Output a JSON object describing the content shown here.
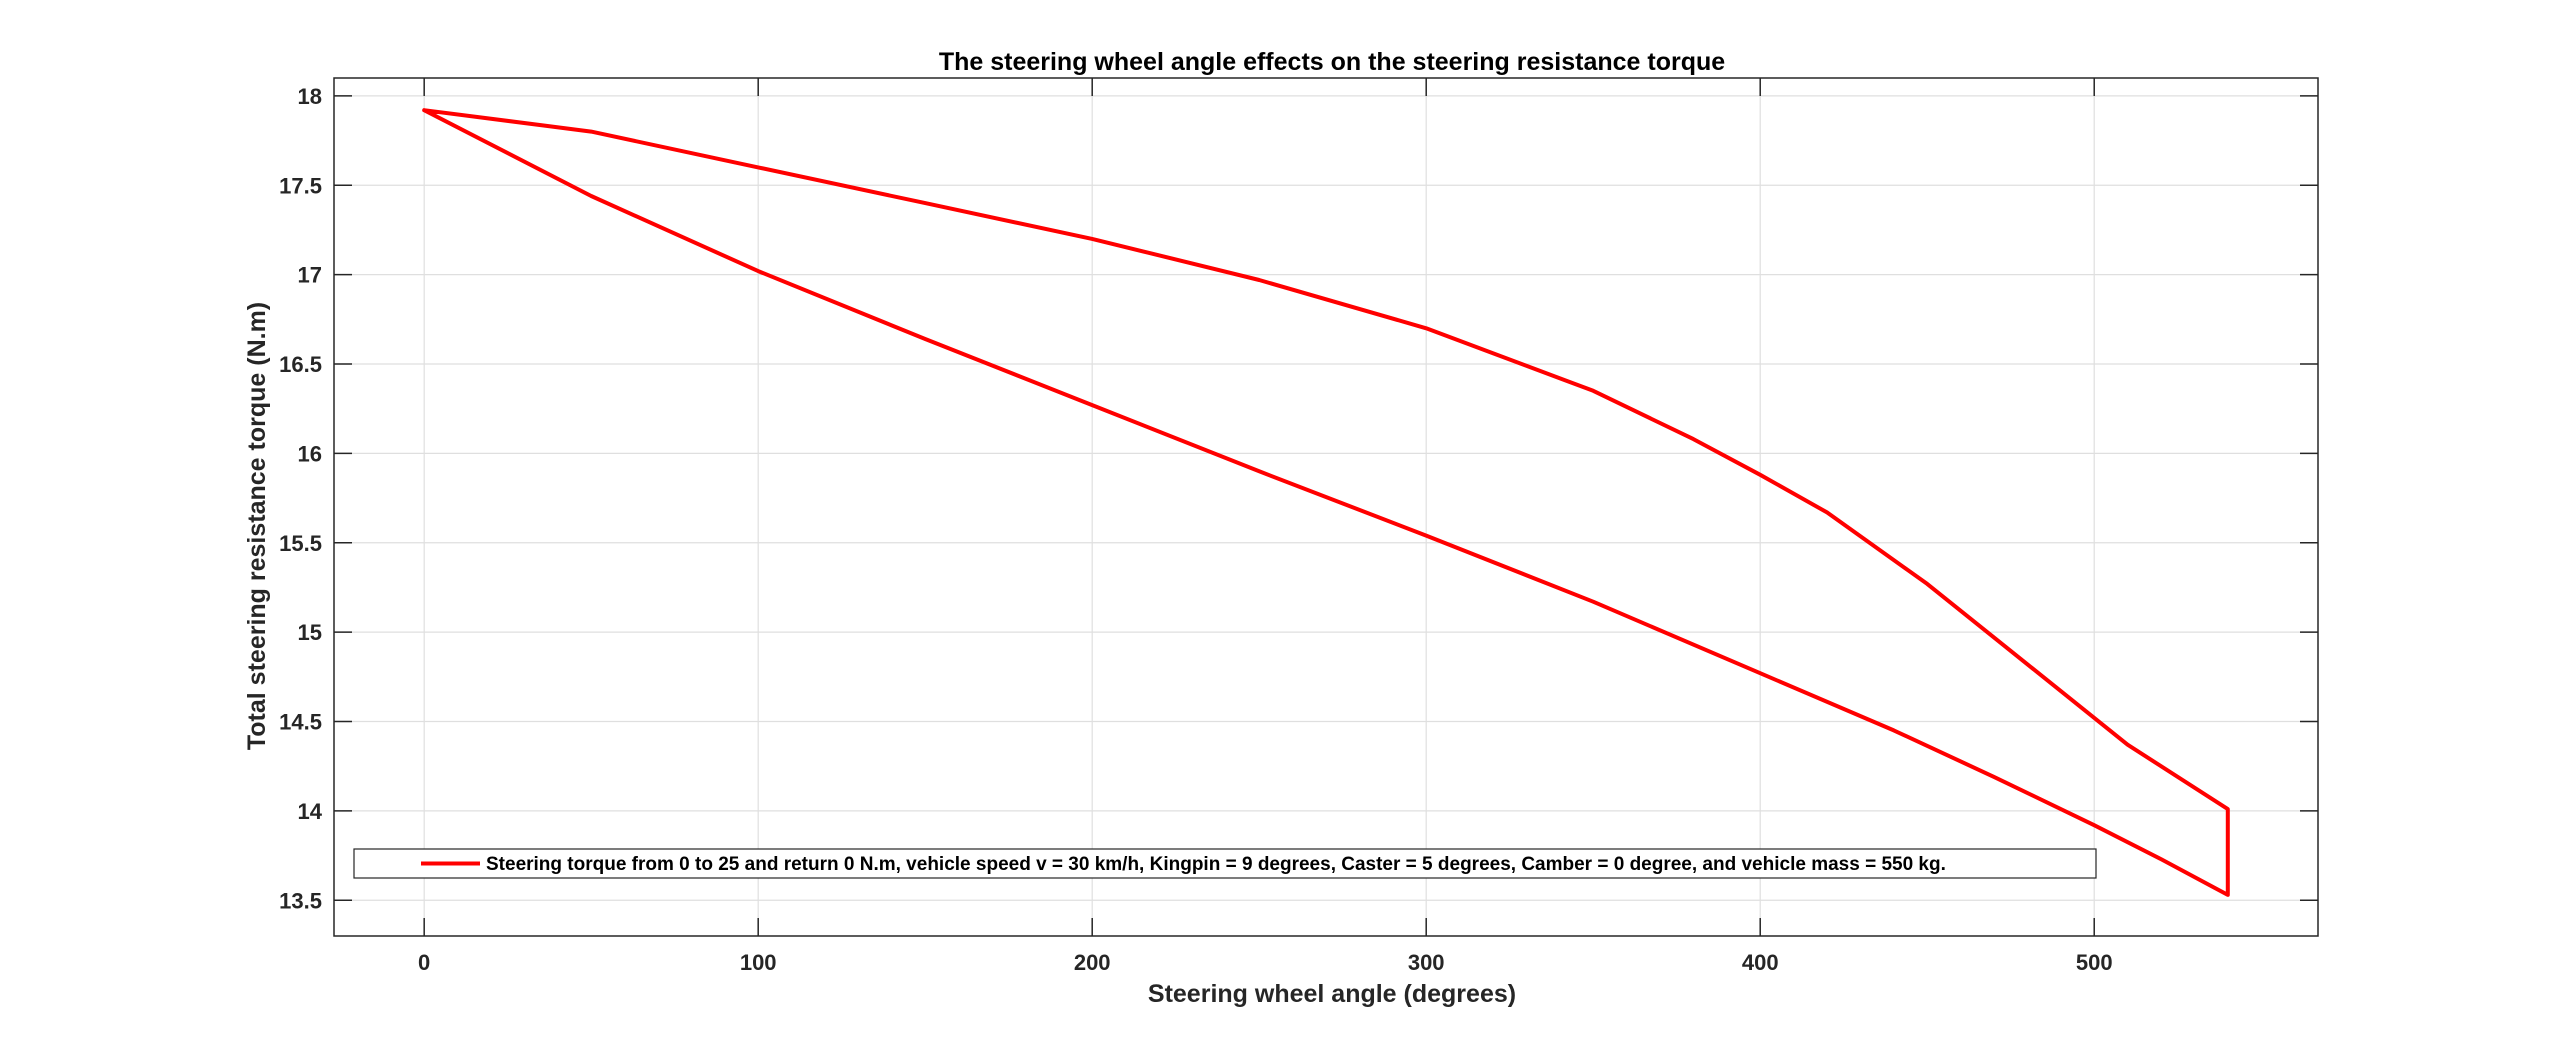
{
  "chart_data": {
    "type": "line",
    "title": "The steering wheel angle effects on the steering resistance torque",
    "xlabel": "Steering wheel angle (degrees)",
    "ylabel": "Total steering resistance torque (N.m)",
    "xlim": [
      -27,
      567
    ],
    "ylim": [
      13.3,
      18.1
    ],
    "xticks": [
      0,
      100,
      200,
      300,
      400,
      500
    ],
    "yticks": [
      13.5,
      14,
      14.5,
      15,
      15.5,
      16,
      16.5,
      17,
      17.5,
      18
    ],
    "xtick_labels": [
      "0",
      "100",
      "200",
      "300",
      "400",
      "500"
    ],
    "ytick_labels": [
      "13.5",
      "14",
      "14.5",
      "15",
      "15.5",
      "16",
      "16.5",
      "17",
      "17.5",
      "18"
    ],
    "grid": true,
    "box": true,
    "legend_position": "bottom, full width",
    "colors": {
      "series": "#ff0000",
      "axes": "#262626",
      "grid": "#dfdfdf",
      "background": "#ffffff"
    },
    "series": [
      {
        "name": "Steering torque from 0 to 25 and return 0 N.m, vehicle speed v = 30 km/h, Kingpin = 9 degrees, Caster = 5 degrees, Camber  = 0 degree, and vehicle mass = 550 kg.",
        "x": [
          0,
          50,
          100,
          150,
          200,
          250,
          300,
          350,
          380,
          400,
          420,
          450,
          480,
          510,
          540,
          540,
          520,
          500,
          470,
          440,
          400,
          350,
          300,
          250,
          200,
          150,
          100,
          50,
          0
        ],
        "y": [
          17.92,
          17.8,
          17.6,
          17.4,
          17.2,
          16.97,
          16.7,
          16.35,
          16.08,
          15.88,
          15.67,
          15.27,
          14.82,
          14.37,
          14.01,
          13.53,
          13.73,
          13.92,
          14.19,
          14.45,
          14.77,
          15.17,
          15.54,
          15.9,
          16.27,
          16.64,
          17.02,
          17.44,
          17.92
        ]
      }
    ]
  }
}
